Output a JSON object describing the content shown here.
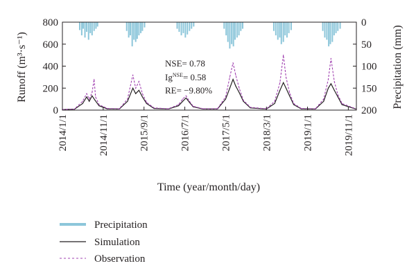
{
  "chart_data": {
    "type": "line",
    "xlabel": "Time (year/month/day)",
    "ylabel_left": "Runoff (m³·s⁻¹)",
    "ylabel_right": "Precipitation (mm)",
    "xlim": [
      "2014-01-01",
      "2019-12-31"
    ],
    "ylim_left": [
      0,
      800
    ],
    "ylim_right": [
      200,
      0
    ],
    "right_axis_inverted": true,
    "x_ticks": [
      "2014/1/1",
      "2014/11/1",
      "2015/9/1",
      "2016/7/1",
      "2017/5/1",
      "2018/3/1",
      "2019/1/1",
      "2019/11/1"
    ],
    "y_ticks_left": [
      "0",
      "200",
      "400",
      "600",
      "800"
    ],
    "y_ticks_right": [
      "0",
      "50",
      "100",
      "150",
      "200"
    ],
    "annotations": {
      "nse": "NSE= 0.78",
      "ig_prefix": "Ig",
      "ig_sup": "NSE",
      "ig_value": "= 0.58",
      "re": "RE= −9.80%"
    },
    "legend": {
      "placement": "bottom",
      "entries": [
        "Precipitation",
        "Simulation",
        "Observation"
      ]
    },
    "series": [
      {
        "name": "Precipitation",
        "axis": "right",
        "style": "bars-from-top",
        "color": "#8cc6da",
        "points": [
          [
            "2014-05-10",
            18
          ],
          [
            "2014-05-25",
            30
          ],
          [
            "2014-06-05",
            15
          ],
          [
            "2014-06-18",
            35
          ],
          [
            "2014-07-01",
            22
          ],
          [
            "2014-07-15",
            40
          ],
          [
            "2014-07-28",
            25
          ],
          [
            "2014-08-10",
            30
          ],
          [
            "2014-08-25",
            20
          ],
          [
            "2014-09-08",
            15
          ],
          [
            "2014-09-20",
            10
          ],
          [
            "2015-04-25",
            20
          ],
          [
            "2015-05-10",
            35
          ],
          [
            "2015-05-22",
            30
          ],
          [
            "2015-06-05",
            55
          ],
          [
            "2015-06-18",
            40
          ],
          [
            "2015-07-01",
            45
          ],
          [
            "2015-07-12",
            38
          ],
          [
            "2015-07-25",
            30
          ],
          [
            "2015-08-08",
            25
          ],
          [
            "2015-08-20",
            20
          ],
          [
            "2015-09-05",
            12
          ],
          [
            "2016-05-05",
            15
          ],
          [
            "2016-05-20",
            22
          ],
          [
            "2016-06-05",
            30
          ],
          [
            "2016-06-20",
            25
          ],
          [
            "2016-07-05",
            35
          ],
          [
            "2016-07-20",
            28
          ],
          [
            "2016-08-05",
            20
          ],
          [
            "2016-08-20",
            15
          ],
          [
            "2016-09-05",
            10
          ],
          [
            "2017-04-20",
            15
          ],
          [
            "2017-05-05",
            30
          ],
          [
            "2017-05-18",
            45
          ],
          [
            "2017-06-01",
            60
          ],
          [
            "2017-06-15",
            50
          ],
          [
            "2017-06-28",
            55
          ],
          [
            "2017-07-10",
            40
          ],
          [
            "2017-07-25",
            35
          ],
          [
            "2017-08-08",
            30
          ],
          [
            "2017-08-22",
            20
          ],
          [
            "2017-09-05",
            15
          ],
          [
            "2018-04-25",
            20
          ],
          [
            "2018-05-10",
            30
          ],
          [
            "2018-05-25",
            40
          ],
          [
            "2018-06-08",
            35
          ],
          [
            "2018-06-20",
            50
          ],
          [
            "2018-07-05",
            45
          ],
          [
            "2018-07-18",
            30
          ],
          [
            "2018-08-01",
            35
          ],
          [
            "2018-08-15",
            25
          ],
          [
            "2018-09-01",
            18
          ],
          [
            "2019-04-25",
            20
          ],
          [
            "2019-05-10",
            35
          ],
          [
            "2019-05-25",
            40
          ],
          [
            "2019-06-08",
            55
          ],
          [
            "2019-06-20",
            50
          ],
          [
            "2019-07-05",
            45
          ],
          [
            "2019-07-18",
            30
          ],
          [
            "2019-08-01",
            25
          ],
          [
            "2019-08-15",
            20
          ],
          [
            "2019-09-01",
            15
          ]
        ]
      },
      {
        "name": "Simulation",
        "axis": "left",
        "style": "solid",
        "color": "#231f20",
        "points": [
          [
            "2014-01-01",
            5
          ],
          [
            "2014-04-01",
            8
          ],
          [
            "2014-06-01",
            60
          ],
          [
            "2014-07-01",
            120
          ],
          [
            "2014-07-20",
            80
          ],
          [
            "2014-08-10",
            130
          ],
          [
            "2014-09-01",
            90
          ],
          [
            "2014-10-01",
            40
          ],
          [
            "2014-12-01",
            12
          ],
          [
            "2015-03-01",
            10
          ],
          [
            "2015-05-01",
            80
          ],
          [
            "2015-06-10",
            200
          ],
          [
            "2015-07-01",
            150
          ],
          [
            "2015-07-25",
            180
          ],
          [
            "2015-08-20",
            120
          ],
          [
            "2015-09-20",
            60
          ],
          [
            "2015-11-15",
            15
          ],
          [
            "2016-03-01",
            10
          ],
          [
            "2016-05-15",
            40
          ],
          [
            "2016-06-15",
            80
          ],
          [
            "2016-07-10",
            110
          ],
          [
            "2016-08-05",
            70
          ],
          [
            "2016-09-01",
            30
          ],
          [
            "2016-11-15",
            10
          ],
          [
            "2017-03-01",
            10
          ],
          [
            "2017-05-01",
            100
          ],
          [
            "2017-06-01",
            200
          ],
          [
            "2017-06-25",
            280
          ],
          [
            "2017-07-15",
            220
          ],
          [
            "2017-08-10",
            160
          ],
          [
            "2017-09-10",
            80
          ],
          [
            "2017-11-01",
            20
          ],
          [
            "2018-03-01",
            10
          ],
          [
            "2018-05-01",
            60
          ],
          [
            "2018-06-10",
            180
          ],
          [
            "2018-07-05",
            250
          ],
          [
            "2018-07-25",
            200
          ],
          [
            "2018-08-20",
            130
          ],
          [
            "2018-09-20",
            50
          ],
          [
            "2018-11-15",
            12
          ],
          [
            "2019-03-01",
            10
          ],
          [
            "2019-05-01",
            80
          ],
          [
            "2019-06-05",
            200
          ],
          [
            "2019-06-25",
            240
          ],
          [
            "2019-07-20",
            180
          ],
          [
            "2019-08-15",
            120
          ],
          [
            "2019-09-15",
            50
          ],
          [
            "2019-12-31",
            8
          ]
        ]
      },
      {
        "name": "Observation",
        "axis": "left",
        "style": "dashed",
        "color": "#a040b0",
        "points": [
          [
            "2014-01-01",
            5
          ],
          [
            "2014-04-01",
            10
          ],
          [
            "2014-06-01",
            80
          ],
          [
            "2014-07-01",
            150
          ],
          [
            "2014-07-20",
            100
          ],
          [
            "2014-08-10",
            160
          ],
          [
            "2014-08-25",
            280
          ],
          [
            "2014-09-05",
            120
          ],
          [
            "2014-10-01",
            50
          ],
          [
            "2014-12-01",
            15
          ],
          [
            "2015-03-01",
            12
          ],
          [
            "2015-05-01",
            100
          ],
          [
            "2015-06-10",
            320
          ],
          [
            "2015-07-01",
            200
          ],
          [
            "2015-07-25",
            260
          ],
          [
            "2015-08-20",
            150
          ],
          [
            "2015-09-20",
            70
          ],
          [
            "2015-11-15",
            20
          ],
          [
            "2016-03-01",
            12
          ],
          [
            "2016-05-15",
            50
          ],
          [
            "2016-06-15",
            100
          ],
          [
            "2016-07-10",
            130
          ],
          [
            "2016-08-05",
            80
          ],
          [
            "2016-09-01",
            35
          ],
          [
            "2016-11-15",
            12
          ],
          [
            "2017-03-01",
            12
          ],
          [
            "2017-05-01",
            120
          ],
          [
            "2017-06-01",
            300
          ],
          [
            "2017-06-25",
            430
          ],
          [
            "2017-07-15",
            320
          ],
          [
            "2017-08-10",
            200
          ],
          [
            "2017-09-10",
            90
          ],
          [
            "2017-11-01",
            25
          ],
          [
            "2018-03-01",
            12
          ],
          [
            "2018-05-01",
            80
          ],
          [
            "2018-06-10",
            250
          ],
          [
            "2018-07-05",
            500
          ],
          [
            "2018-07-25",
            300
          ],
          [
            "2018-08-20",
            160
          ],
          [
            "2018-09-20",
            60
          ],
          [
            "2018-11-15",
            15
          ],
          [
            "2019-03-01",
            12
          ],
          [
            "2019-05-01",
            100
          ],
          [
            "2019-06-05",
            280
          ],
          [
            "2019-06-25",
            470
          ],
          [
            "2019-07-20",
            260
          ],
          [
            "2019-08-15",
            140
          ],
          [
            "2019-09-15",
            60
          ],
          [
            "2019-12-31",
            10
          ]
        ]
      }
    ]
  }
}
